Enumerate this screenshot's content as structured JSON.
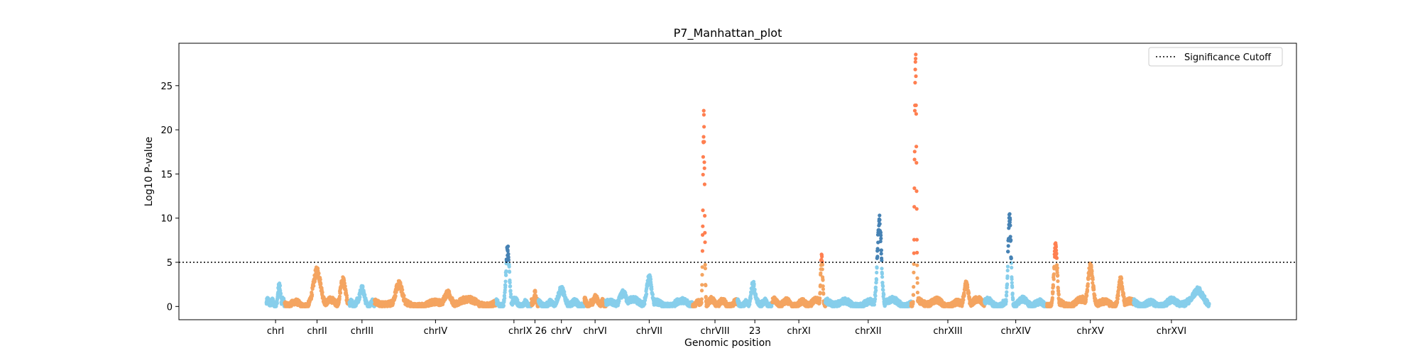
{
  "colors": {
    "sky": "#87CEEB",
    "sandy": "#F4A460",
    "steel": "#4682B4",
    "coral": "#FF7F50",
    "frame": "#000000",
    "background": "#FFFFFF"
  },
  "chart_data": {
    "type": "scatter",
    "title": "P7_Manhattan_plot",
    "xlabel": "Genomic position",
    "ylabel": "Log10 P-value",
    "ylim": [
      -1.5,
      29.8
    ],
    "yticks": [
      0,
      5,
      10,
      15,
      20,
      25
    ],
    "grid": false,
    "legend": {
      "placement": "top-right",
      "entries": [
        "Significance Cutoff"
      ]
    },
    "significance_cutoff": 5,
    "xtick_labels": [
      "chrI",
      "chrII",
      "chrIII",
      "chrIV",
      "chrIX 26",
      "chrV",
      "chrVI",
      "chrVII",
      "chrVIII",
      "23",
      "chrXI",
      "chrXII",
      "chrXIII",
      "chrXIV",
      "chrXV",
      "chrXVI"
    ],
    "chromosomes": [
      {
        "name": "chrI",
        "start": 0,
        "end": 230,
        "base_color": "sky",
        "sig_color": "steel",
        "peaks": [
          {
            "pos": 0.7,
            "height": 2.4,
            "width": 0.15
          }
        ]
      },
      {
        "name": "chrII",
        "start": 230,
        "end": 1043,
        "base_color": "sandy",
        "sig_color": "coral",
        "peaks": [
          {
            "pos": 0.5,
            "height": 4.0,
            "width": 0.12
          },
          {
            "pos": 0.9,
            "height": 3.0,
            "width": 0.08
          }
        ]
      },
      {
        "name": "chrIII",
        "start": 1043,
        "end": 1360,
        "base_color": "sky",
        "sig_color": "steel",
        "peaks": [
          {
            "pos": 0.5,
            "height": 2.0,
            "width": 0.2
          }
        ]
      },
      {
        "name": "chrIV",
        "start": 1360,
        "end": 2892,
        "base_color": "sandy",
        "sig_color": "coral",
        "peaks": [
          {
            "pos": 0.2,
            "height": 2.5,
            "width": 0.06
          },
          {
            "pos": 0.6,
            "height": 1.5,
            "width": 0.06
          }
        ]
      },
      {
        "name": "chrIX",
        "start": 2892,
        "end": 3332,
        "base_color": "sky",
        "sig_color": "steel",
        "peaks": [
          {
            "pos": 0.32,
            "height": 6.5,
            "width": 0.1
          }
        ]
      },
      {
        "name": "26",
        "start": 3332,
        "end": 3420,
        "base_color": "sandy",
        "sig_color": "coral",
        "peaks": [
          {
            "pos": 0.5,
            "height": 1.5,
            "width": 0.3
          }
        ]
      },
      {
        "name": "chrV",
        "start": 3420,
        "end": 3997,
        "base_color": "sky",
        "sig_color": "steel",
        "peaks": [
          {
            "pos": 0.5,
            "height": 1.9,
            "width": 0.15
          }
        ]
      },
      {
        "name": "chrVI",
        "start": 3997,
        "end": 4267,
        "base_color": "sandy",
        "sig_color": "coral",
        "peaks": [
          {
            "pos": 0.5,
            "height": 1.0,
            "width": 0.2
          }
        ]
      },
      {
        "name": "chrVII",
        "start": 4267,
        "end": 5358,
        "base_color": "sky",
        "sig_color": "steel",
        "peaks": [
          {
            "pos": 0.5,
            "height": 3.2,
            "width": 0.06
          },
          {
            "pos": 0.2,
            "height": 1.5,
            "width": 0.08
          }
        ]
      },
      {
        "name": "chrVIII",
        "start": 5358,
        "end": 5921,
        "base_color": "sandy",
        "sig_color": "coral",
        "peaks": [
          {
            "pos": 0.25,
            "height": 20.8,
            "width": 0.04
          }
        ]
      },
      {
        "name": "23",
        "start": 5921,
        "end": 6360,
        "base_color": "sky",
        "sig_color": "steel",
        "peaks": [
          {
            "pos": 0.45,
            "height": 2.5,
            "width": 0.12
          }
        ]
      },
      {
        "name": "chrXI",
        "start": 6360,
        "end": 7027,
        "base_color": "sandy",
        "sig_color": "coral",
        "peaks": [
          {
            "pos": 0.93,
            "height": 5.8,
            "width": 0.04
          }
        ]
      },
      {
        "name": "chrXII",
        "start": 7027,
        "end": 8105,
        "base_color": "sky",
        "sig_color": "steel",
        "peaks": [
          {
            "pos": 0.63,
            "height": 9.5,
            "width": 0.05
          }
        ]
      },
      {
        "name": "chrXIII",
        "start": 8105,
        "end": 9029,
        "base_color": "sandy",
        "sig_color": "coral",
        "peaks": [
          {
            "pos": 0.06,
            "height": 28.0,
            "width": 0.025
          },
          {
            "pos": 0.75,
            "height": 2.5,
            "width": 0.06
          }
        ]
      },
      {
        "name": "chrXIV",
        "start": 9029,
        "end": 9813,
        "base_color": "sky",
        "sig_color": "steel",
        "peaks": [
          {
            "pos": 0.4,
            "height": 10.0,
            "width": 0.05
          }
        ]
      },
      {
        "name": "chrXV",
        "start": 9813,
        "end": 10904,
        "base_color": "sandy",
        "sig_color": "coral",
        "peaks": [
          {
            "pos": 0.1,
            "height": 6.8,
            "width": 0.04
          },
          {
            "pos": 0.5,
            "height": 4.5,
            "width": 0.06
          },
          {
            "pos": 0.85,
            "height": 3.0,
            "width": 0.05
          }
        ]
      },
      {
        "name": "chrXVI",
        "start": 10904,
        "end": 11852,
        "base_color": "sky",
        "sig_color": "steel",
        "peaks": [
          {
            "pos": 0.85,
            "height": 1.8,
            "width": 0.15
          }
        ]
      }
    ],
    "xlim": [
      -1100,
      12950
    ]
  }
}
